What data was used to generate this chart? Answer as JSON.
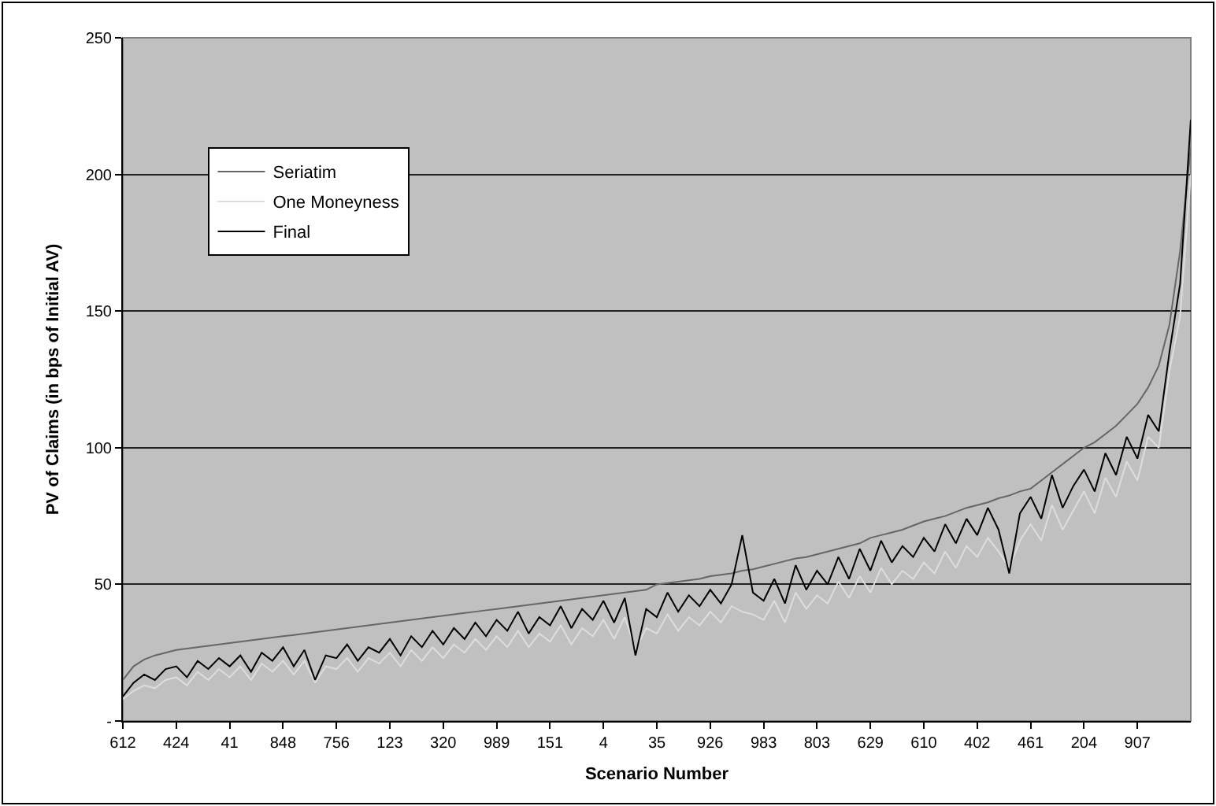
{
  "chart_data": {
    "type": "line",
    "xlabel": "Scenario Number",
    "ylabel": "PV of Claims (in bps of Initial AV)",
    "categories": [
      "612",
      null,
      null,
      null,
      null,
      "424",
      null,
      null,
      null,
      null,
      "41",
      null,
      null,
      null,
      null,
      "848",
      null,
      null,
      null,
      null,
      "756",
      null,
      null,
      null,
      null,
      "123",
      null,
      null,
      null,
      null,
      "320",
      null,
      null,
      null,
      null,
      "989",
      null,
      null,
      null,
      null,
      "151",
      null,
      null,
      null,
      null,
      "4",
      null,
      null,
      null,
      null,
      "35",
      null,
      null,
      null,
      null,
      "926",
      null,
      null,
      null,
      null,
      "983",
      null,
      null,
      null,
      null,
      "803",
      null,
      null,
      null,
      null,
      "629",
      null,
      null,
      null,
      null,
      "610",
      null,
      null,
      null,
      null,
      "402",
      null,
      null,
      null,
      null,
      "461",
      null,
      null,
      null,
      null,
      "204",
      null,
      null,
      null,
      null,
      "907",
      null,
      null,
      null,
      null,
      null
    ],
    "series": [
      {
        "name": "Seriatim",
        "color": "#666666",
        "values": [
          15,
          20,
          22.5,
          24,
          25,
          26,
          26.5,
          27,
          27.5,
          28,
          28.5,
          29,
          29.5,
          30,
          30.5,
          31,
          31.5,
          32,
          32.5,
          33,
          33.5,
          34,
          34.5,
          35,
          35.5,
          36,
          36.5,
          37,
          37.5,
          38,
          38.5,
          39,
          39.5,
          40,
          40.5,
          41,
          41.5,
          42,
          42.5,
          43,
          43.5,
          44,
          44.5,
          45,
          45.5,
          46,
          46.5,
          47,
          47.5,
          48,
          50,
          50.5,
          51,
          51.5,
          52,
          53,
          53.5,
          54,
          55,
          55.5,
          56.5,
          57.5,
          58.5,
          59.5,
          60,
          61,
          62,
          63,
          64,
          65,
          67,
          68,
          69,
          70,
          71.5,
          73,
          74,
          75,
          76.5,
          78,
          79,
          80,
          81.5,
          82.5,
          84,
          85,
          88,
          91,
          94,
          97,
          100,
          102,
          105,
          108,
          112,
          116,
          122,
          130,
          145,
          172,
          210
        ]
      },
      {
        "name": "One Moneyness",
        "color": "#dddddd",
        "values": [
          8,
          11,
          13,
          12,
          15,
          16,
          13,
          18,
          15,
          19,
          16,
          20,
          15,
          21,
          18,
          22,
          17,
          22,
          14,
          20,
          19,
          23,
          18,
          23,
          21,
          25,
          20,
          26,
          22,
          27,
          23,
          28,
          25,
          30,
          26,
          31,
          27,
          33,
          27,
          32,
          29,
          35,
          28,
          34,
          31,
          37,
          30,
          38,
          26,
          34,
          32,
          39,
          33,
          38,
          35,
          40,
          36,
          42,
          40,
          39,
          37,
          44,
          36,
          47,
          41,
          46,
          43,
          51,
          45,
          53,
          47,
          56,
          50,
          55,
          52,
          58,
          54,
          62,
          56,
          64,
          60,
          67,
          62,
          56,
          66,
          72,
          66,
          79,
          70,
          77,
          84,
          76,
          89,
          82,
          95,
          88,
          104,
          100,
          128,
          148,
          200
        ]
      },
      {
        "name": "Final",
        "color": "#000000",
        "values": [
          9,
          14,
          17,
          15,
          19,
          20,
          16,
          22,
          19,
          23,
          20,
          24,
          18,
          25,
          22,
          27,
          20,
          26,
          15,
          24,
          23,
          28,
          22,
          27,
          25,
          30,
          24,
          31,
          27,
          33,
          28,
          34,
          30,
          36,
          31,
          37,
          33,
          40,
          32,
          38,
          35,
          42,
          34,
          41,
          37,
          44,
          36,
          45,
          24,
          41,
          38,
          47,
          40,
          46,
          42,
          48,
          43,
          50,
          68,
          47,
          44,
          52,
          43,
          57,
          48,
          55,
          50,
          60,
          52,
          63,
          55,
          66,
          58,
          64,
          60,
          67,
          62,
          72,
          65,
          74,
          68,
          78,
          70,
          54,
          76,
          82,
          74,
          90,
          78,
          86,
          92,
          84,
          98,
          90,
          104,
          96,
          112,
          106,
          135,
          160,
          220
        ]
      }
    ],
    "ylim": [
      0,
      250
    ],
    "yticks": [
      {
        "value": 0,
        "label": "-"
      },
      50,
      100,
      150,
      200,
      250
    ],
    "grid": "y",
    "legend": "top left"
  }
}
